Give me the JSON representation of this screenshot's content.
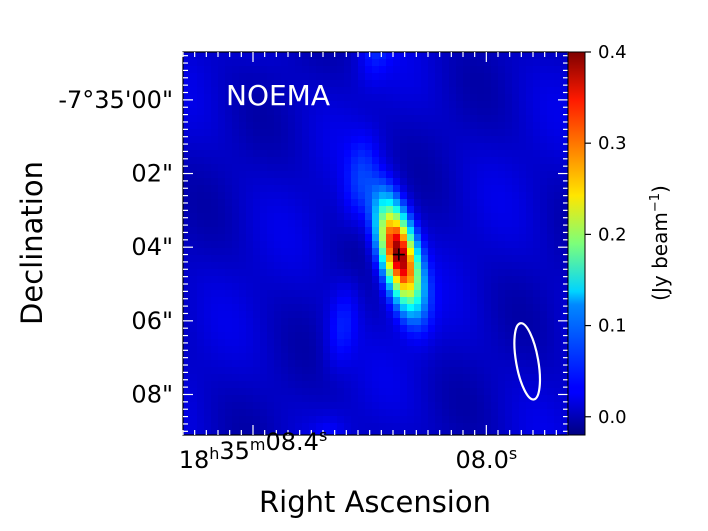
{
  "chart_data": {
    "type": "heatmap",
    "title": "",
    "panel_label": "NOEMA",
    "xlabel": "Right Ascension",
    "ylabel": "Declination",
    "x_ticks": [
      {
        "ra_seconds": 8.4,
        "parts": [
          [
            "18",
            "h"
          ],
          [
            "35",
            "m"
          ],
          [
            "08.4",
            "s"
          ]
        ]
      },
      {
        "ra_seconds": 8.0,
        "parts": [
          [
            "08.0",
            "s"
          ]
        ]
      }
    ],
    "y_ticks": [
      {
        "offset_arcsec": 0,
        "label": "-7°35'00\""
      },
      {
        "offset_arcsec": 2,
        "label": "02\""
      },
      {
        "offset_arcsec": 4,
        "label": "04\""
      },
      {
        "offset_arcsec": 6,
        "label": "06\""
      },
      {
        "offset_arcsec": 8,
        "label": "08\""
      }
    ],
    "xlim_ra_seconds": [
      8.52,
      7.86
    ],
    "ylim_offset_arcsec": [
      -1.3,
      9.1
    ],
    "colorbar": {
      "label_main": "(Jy beam",
      "label_sup": "−1",
      "label_close": ")",
      "range": [
        -0.02,
        0.4
      ],
      "ticks": [
        {
          "value": 0.0,
          "label": "0.0"
        },
        {
          "value": 0.1,
          "label": "0.1"
        },
        {
          "value": 0.2,
          "label": "0.2"
        },
        {
          "value": 0.3,
          "label": "0.3"
        },
        {
          "value": 0.4,
          "label": "0.4"
        }
      ],
      "colormap": "jet"
    },
    "source": {
      "ra_seconds": 8.15,
      "dec_offset_arcsec": 4.2,
      "peak_jy_per_beam": 0.39,
      "major_fwhm_arcsec": 2.3,
      "minor_fwhm_arcsec": 0.75,
      "tilt_deg": -14,
      "marker": "plus"
    },
    "background_jy_per_beam": 0.01,
    "beam": {
      "ra_seconds": 7.93,
      "dec_offset_arcsec": 7.1,
      "major_arcsec": 2.1,
      "minor_arcsec": 0.6,
      "tilt_deg": -10,
      "color": "#ffffff"
    }
  }
}
